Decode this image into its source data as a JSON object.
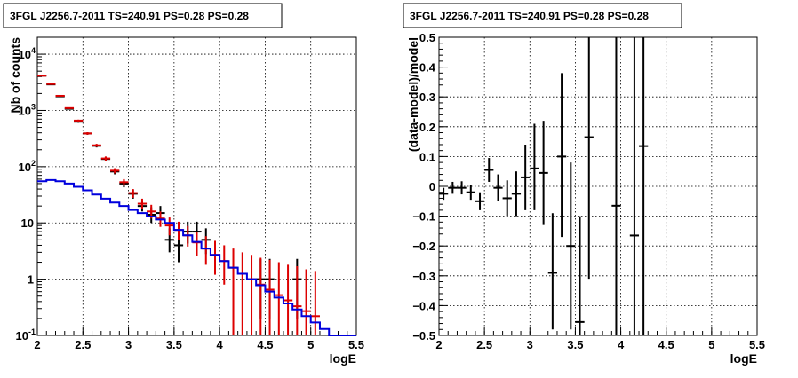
{
  "chart_data": [
    {
      "type": "scatter",
      "title": "3FGL J2256.7-2011 TS=240.91 PS=0.28 PS=0.28",
      "xlabel": "logE",
      "ylabel": "Nb of counts",
      "xlim": [
        2,
        5.5
      ],
      "ylim": [
        0.1,
        20000
      ],
      "y_scale": "log",
      "grid": true,
      "x_ticks": [
        "2",
        "2.5",
        "3",
        "3.5",
        "4",
        "4.5",
        "5",
        "5.5"
      ],
      "y_ticks": [
        {
          "value": 0.1,
          "label": "10",
          "exp": "-1"
        },
        {
          "value": 1,
          "label": "1",
          "exp": ""
        },
        {
          "value": 10,
          "label": "10",
          "exp": ""
        },
        {
          "value": 100,
          "label": "10",
          "exp": "2"
        },
        {
          "value": 1000,
          "label": "10",
          "exp": "3"
        },
        {
          "value": 10000,
          "label": "10",
          "exp": "4"
        }
      ],
      "bin_edges": [
        2.0,
        2.1,
        2.2,
        2.3,
        2.4,
        2.5,
        2.6,
        2.7,
        2.8,
        2.9,
        3.0,
        3.1,
        3.2,
        3.3,
        3.4,
        3.5,
        3.6,
        3.7,
        3.8,
        3.9,
        4.0,
        4.1,
        4.2,
        4.3,
        4.4,
        4.5,
        4.6,
        4.7,
        4.8,
        4.9,
        5.0,
        5.1,
        5.2,
        5.3,
        5.4,
        5.5
      ],
      "series": [
        {
          "color": "#000000",
          "points": [
            {
              "x": 2.05,
              "y": 4150,
              "lo": 4085,
              "hi": 4215
            },
            {
              "x": 2.15,
              "y": 2900,
              "lo": 2846,
              "hi": 2954
            },
            {
              "x": 2.25,
              "y": 1780,
              "lo": 1738,
              "hi": 1822
            },
            {
              "x": 2.35,
              "y": 1070,
              "lo": 1037,
              "hi": 1103
            },
            {
              "x": 2.45,
              "y": 630,
              "lo": 605,
              "hi": 655
            },
            {
              "x": 2.55,
              "y": 390,
              "lo": 370,
              "hi": 410
            },
            {
              "x": 2.65,
              "y": 235,
              "lo": 220,
              "hi": 250
            },
            {
              "x": 2.75,
              "y": 137,
              "lo": 125,
              "hi": 149
            },
            {
              "x": 2.85,
              "y": 82,
              "lo": 73,
              "hi": 91
            },
            {
              "x": 2.95,
              "y": 50,
              "lo": 43,
              "hi": 57
            },
            {
              "x": 3.05,
              "y": 33,
              "lo": 27,
              "hi": 39
            },
            {
              "x": 3.15,
              "y": 20,
              "lo": 16,
              "hi": 25
            },
            {
              "x": 3.25,
              "y": 14,
              "lo": 10,
              "hi": 19
            },
            {
              "x": 3.35,
              "y": 15,
              "lo": 11,
              "hi": 20
            },
            {
              "x": 3.45,
              "y": 5,
              "lo": 3,
              "hi": 8
            },
            {
              "x": 3.55,
              "y": 4,
              "lo": 2,
              "hi": 6.5
            },
            {
              "x": 3.65,
              "y": 7,
              "lo": 4.3,
              "hi": 10.5
            },
            {
              "x": 3.75,
              "y": 7,
              "lo": 4.3,
              "hi": 10.5
            },
            {
              "x": 3.85,
              "y": 5,
              "lo": 2.8,
              "hi": 8
            },
            {
              "x": 4.45,
              "y": 1,
              "lo": 0.2,
              "hi": 2.3
            },
            {
              "x": 4.55,
              "y": 1,
              "lo": 0.2,
              "hi": 2.3
            },
            {
              "x": 4.85,
              "y": 1,
              "lo": 0.2,
              "hi": 2.3
            }
          ]
        },
        {
          "color": "#dd0000",
          "points": [
            {
              "x": 2.05,
              "y": 4150,
              "lo": 4085,
              "hi": 4215
            },
            {
              "x": 2.15,
              "y": 2950,
              "lo": 2896,
              "hi": 3004
            },
            {
              "x": 2.25,
              "y": 1820,
              "lo": 1778,
              "hi": 1862
            },
            {
              "x": 2.35,
              "y": 1100,
              "lo": 1067,
              "hi": 1133
            },
            {
              "x": 2.45,
              "y": 660,
              "lo": 634,
              "hi": 686
            },
            {
              "x": 2.55,
              "y": 390,
              "lo": 370,
              "hi": 410
            },
            {
              "x": 2.65,
              "y": 240,
              "lo": 225,
              "hi": 255
            },
            {
              "x": 2.75,
              "y": 140,
              "lo": 128,
              "hi": 152
            },
            {
              "x": 2.85,
              "y": 85,
              "lo": 76,
              "hi": 94
            },
            {
              "x": 2.95,
              "y": 53,
              "lo": 46,
              "hi": 60
            },
            {
              "x": 3.05,
              "y": 34,
              "lo": 28,
              "hi": 40
            },
            {
              "x": 3.15,
              "y": 22,
              "lo": 18,
              "hi": 27
            },
            {
              "x": 3.25,
              "y": 16,
              "lo": 12,
              "hi": 21
            },
            {
              "x": 3.35,
              "y": 12,
              "lo": 8.5,
              "hi": 16
            },
            {
              "x": 3.45,
              "y": 9,
              "lo": 6,
              "hi": 12.5
            },
            {
              "x": 3.55,
              "y": 7.5,
              "lo": 5,
              "hi": 10.5
            },
            {
              "x": 3.65,
              "y": 6,
              "lo": 3.8,
              "hi": 8.8
            },
            {
              "x": 3.75,
              "y": 4.5,
              "lo": 2.6,
              "hi": 7
            },
            {
              "x": 3.85,
              "y": 3.5,
              "lo": 1.8,
              "hi": 5.8
            },
            {
              "x": 3.95,
              "y": 2.7,
              "lo": 1.2,
              "hi": 4.8
            },
            {
              "x": 4.05,
              "y": 2.1,
              "lo": 0.8,
              "hi": 4
            },
            {
              "x": 4.15,
              "y": 1.6,
              "lo": 0.1,
              "hi": 3.5
            },
            {
              "x": 4.25,
              "y": 1.25,
              "lo": 0.1,
              "hi": 3
            },
            {
              "x": 4.35,
              "y": 1,
              "lo": 0.1,
              "hi": 2.7
            },
            {
              "x": 4.45,
              "y": 0.8,
              "lo": 0.1,
              "hi": 2.4
            },
            {
              "x": 4.55,
              "y": 0.65,
              "lo": 0.1,
              "hi": 2.2
            },
            {
              "x": 4.65,
              "y": 0.52,
              "lo": 0.1,
              "hi": 2
            },
            {
              "x": 4.75,
              "y": 0.42,
              "lo": 0.1,
              "hi": 1.8
            },
            {
              "x": 4.85,
              "y": 0.33,
              "lo": 0.1,
              "hi": 1.7
            },
            {
              "x": 4.95,
              "y": 0.27,
              "lo": 0.1,
              "hi": 1.5
            },
            {
              "x": 5.05,
              "y": 0.22,
              "lo": 0.1,
              "hi": 1.4
            }
          ]
        },
        {
          "color": "#0000dd",
          "step_values": [
            55,
            58,
            55,
            50,
            44,
            38,
            32,
            27,
            23,
            20,
            17,
            15,
            13,
            11.5,
            10,
            7.5,
            6,
            4.6,
            3.5,
            2.7,
            2.1,
            1.6,
            1.25,
            1,
            0.78,
            0.6,
            0.47,
            0.37,
            0.29,
            0.22,
            0.17,
            0.13,
            0.1,
            0.1,
            0.1
          ]
        }
      ]
    },
    {
      "type": "scatter",
      "title": "3FGL J2256.7-2011 TS=240.91 PS=0.28 PS=0.28",
      "xlabel": "logE",
      "ylabel": "(data-model)/model",
      "xlim": [
        2,
        5.5
      ],
      "ylim": [
        -0.5,
        0.5
      ],
      "grid": true,
      "x_ticks": [
        "2",
        "2.5",
        "3",
        "3.5",
        "4",
        "4.5",
        "5",
        "5.5"
      ],
      "y_ticks": [
        "−0.5",
        "−0.4",
        "−0.3",
        "−0.2",
        "−0.1",
        "0",
        "0.1",
        "0.2",
        "0.3",
        "0.4",
        "0.5"
      ],
      "series": [
        {
          "color": "#000000",
          "points": [
            {
              "x": 2.05,
              "y": -0.025,
              "lo": -0.045,
              "hi": -0.005
            },
            {
              "x": 2.15,
              "y": -0.005,
              "lo": -0.025,
              "hi": 0.015
            },
            {
              "x": 2.25,
              "y": -0.005,
              "lo": -0.027,
              "hi": 0.017
            },
            {
              "x": 2.35,
              "y": -0.02,
              "lo": -0.045,
              "hi": 0.005
            },
            {
              "x": 2.45,
              "y": -0.05,
              "lo": -0.08,
              "hi": -0.02
            },
            {
              "x": 2.55,
              "y": 0.055,
              "lo": 0.015,
              "hi": 0.095
            },
            {
              "x": 2.65,
              "y": -0.005,
              "lo": -0.05,
              "hi": 0.04
            },
            {
              "x": 2.75,
              "y": -0.04,
              "lo": -0.1,
              "hi": 0.02
            },
            {
              "x": 2.85,
              "y": -0.025,
              "lo": -0.1,
              "hi": 0.05
            },
            {
              "x": 2.95,
              "y": 0.03,
              "lo": -0.08,
              "hi": 0.14
            },
            {
              "x": 3.05,
              "y": 0.06,
              "lo": -0.08,
              "hi": 0.21
            },
            {
              "x": 3.15,
              "y": 0.045,
              "lo": -0.13,
              "hi": 0.22
            },
            {
              "x": 3.25,
              "y": -0.29,
              "lo": -0.48,
              "hi": -0.09
            },
            {
              "x": 3.35,
              "y": 0.1,
              "lo": -0.17,
              "hi": 0.38
            },
            {
              "x": 3.45,
              "y": -0.2,
              "lo": -0.48,
              "hi": 0.08
            },
            {
              "x": 3.55,
              "y": -0.455,
              "lo": -0.5,
              "hi": -0.1
            },
            {
              "x": 3.65,
              "y": 0.165,
              "lo": -0.31,
              "hi": 0.5
            },
            {
              "x": 3.95,
              "y": -0.065,
              "lo": -0.5,
              "hi": 0.5
            },
            {
              "x": 4.15,
              "y": -0.165,
              "lo": -0.5,
              "hi": 0.5
            },
            {
              "x": 4.25,
              "y": 0.135,
              "lo": -0.5,
              "hi": 0.5
            }
          ]
        }
      ]
    }
  ]
}
